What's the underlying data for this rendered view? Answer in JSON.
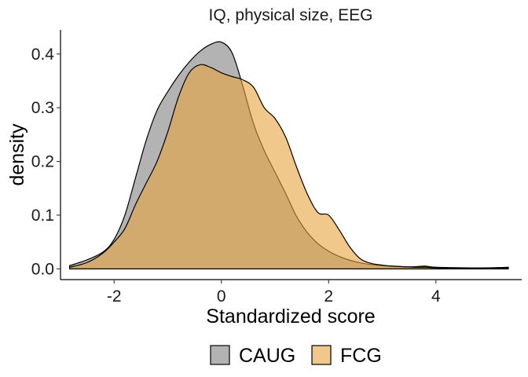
{
  "chart_data": {
    "type": "area",
    "title": "IQ, physical size, EEG",
    "xlabel": "Standardized score",
    "ylabel": "density",
    "xlim": [
      -3.0,
      5.6
    ],
    "ylim": [
      -0.02,
      0.445
    ],
    "xticks": [
      -2,
      0,
      2,
      4
    ],
    "xtick_labels": [
      "-2",
      "0",
      "2",
      "4"
    ],
    "yticks": [
      0.0,
      0.1,
      0.2,
      0.3,
      0.4
    ],
    "ytick_labels": [
      "0.0",
      "0.1",
      "0.2",
      "0.3",
      "0.4"
    ],
    "grid": false,
    "legend_position": "bottom",
    "series": [
      {
        "name": "CAUG",
        "color": "#808080",
        "x": [
          -2.83,
          -2.5,
          -2.2,
          -2.0,
          -1.8,
          -1.6,
          -1.4,
          -1.2,
          -1.0,
          -0.8,
          -0.6,
          -0.4,
          -0.2,
          0.0,
          0.2,
          0.4,
          0.6,
          0.8,
          1.0,
          1.2,
          1.4,
          1.6,
          1.8,
          2.0,
          2.2,
          2.4,
          2.6,
          2.8,
          3.0,
          3.2,
          3.4,
          3.6,
          3.8,
          4.0,
          4.5,
          5.0,
          5.35
        ],
        "y": [
          0.006,
          0.017,
          0.032,
          0.055,
          0.1,
          0.17,
          0.24,
          0.295,
          0.33,
          0.36,
          0.385,
          0.405,
          0.418,
          0.422,
          0.402,
          0.34,
          0.27,
          0.22,
          0.18,
          0.14,
          0.098,
          0.068,
          0.047,
          0.033,
          0.023,
          0.016,
          0.011,
          0.008,
          0.006,
          0.005,
          0.004,
          0.004,
          0.005,
          0.003,
          0.002,
          0.002,
          0.003
        ]
      },
      {
        "name": "FCG",
        "color": "#E8A33D",
        "x": [
          -2.83,
          -2.5,
          -2.2,
          -2.0,
          -1.8,
          -1.6,
          -1.4,
          -1.2,
          -1.0,
          -0.8,
          -0.6,
          -0.4,
          -0.2,
          0.0,
          0.2,
          0.4,
          0.6,
          0.8,
          1.0,
          1.2,
          1.4,
          1.6,
          1.8,
          2.0,
          2.2,
          2.4,
          2.6,
          2.8,
          3.0,
          3.2,
          3.4,
          3.6,
          3.8,
          4.0,
          4.5,
          5.0,
          5.35
        ],
        "y": [
          0.003,
          0.012,
          0.03,
          0.05,
          0.075,
          0.12,
          0.16,
          0.2,
          0.255,
          0.32,
          0.365,
          0.38,
          0.375,
          0.365,
          0.358,
          0.352,
          0.338,
          0.3,
          0.28,
          0.245,
          0.19,
          0.14,
          0.105,
          0.1,
          0.072,
          0.04,
          0.018,
          0.01,
          0.007,
          0.005,
          0.004,
          0.003,
          0.003,
          0.002,
          0.001,
          0.001,
          0.001
        ]
      }
    ]
  }
}
